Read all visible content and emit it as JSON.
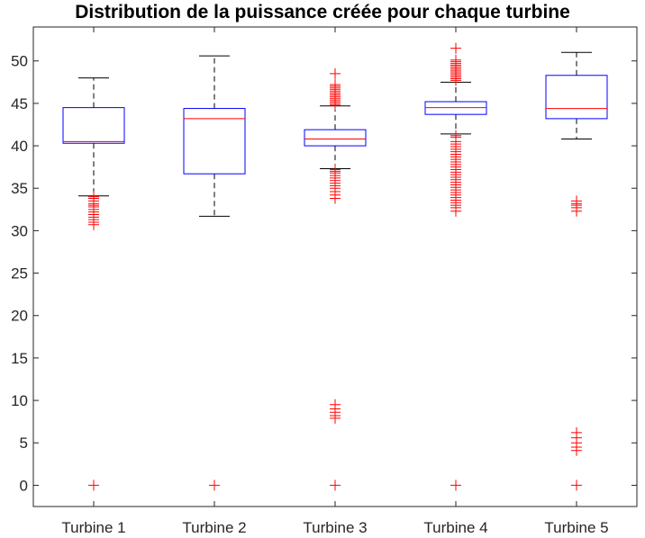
{
  "chart_data": {
    "type": "box",
    "title": "Distribution de la puissance créée pour chaque turbine",
    "xlabel": "",
    "ylabel": "",
    "ylim": [
      -2.5,
      54
    ],
    "yticks": [
      0,
      5,
      10,
      15,
      20,
      25,
      30,
      35,
      40,
      45,
      50
    ],
    "categories": [
      "Turbine 1",
      "Turbine 2",
      "Turbine 3",
      "Turbine 4",
      "Turbine 5"
    ],
    "boxes": [
      {
        "name": "Turbine 1",
        "whisker_low": 34.1,
        "q1": 40.3,
        "median": 40.5,
        "q3": 44.5,
        "whisker_high": 48.0,
        "outliers": [
          34.0,
          33.8,
          33.5,
          33.2,
          33.0,
          32.8,
          32.5,
          32.2,
          31.9,
          31.6,
          31.3,
          31.0,
          30.7,
          0
        ]
      },
      {
        "name": "Turbine 2",
        "whisker_low": 31.7,
        "q1": 36.7,
        "median": 43.2,
        "q3": 44.4,
        "whisker_high": 50.6,
        "outliers": [
          0
        ]
      },
      {
        "name": "Turbine 3",
        "whisker_low": 37.3,
        "q1": 40.0,
        "median": 40.8,
        "q3": 41.9,
        "whisker_high": 44.7,
        "outliers": [
          48.5,
          47.2,
          47.0,
          46.8,
          46.6,
          46.4,
          46.2,
          46.0,
          45.8,
          45.6,
          45.4,
          45.2,
          45.0,
          44.8,
          37.2,
          37.0,
          36.8,
          36.5,
          36.2,
          35.9,
          35.6,
          35.3,
          35.0,
          34.6,
          34.2,
          33.8,
          9.5,
          9.0,
          8.6,
          8.2,
          7.9,
          0
        ]
      },
      {
        "name": "Turbine 4",
        "whisker_low": 41.4,
        "q1": 43.7,
        "median": 44.5,
        "q3": 45.2,
        "whisker_high": 47.5,
        "outliers": [
          51.5,
          50.1,
          49.9,
          49.7,
          49.5,
          49.3,
          49.1,
          48.9,
          48.7,
          48.5,
          48.3,
          48.1,
          47.9,
          47.7,
          41.2,
          41.0,
          40.5,
          40.2,
          39.9,
          39.6,
          39.3,
          39.0,
          38.7,
          38.4,
          38.1,
          37.8,
          37.5,
          37.2,
          36.9,
          36.6,
          36.3,
          36.0,
          35.7,
          35.4,
          35.1,
          34.8,
          34.5,
          34.2,
          33.9,
          33.6,
          33.3,
          33.0,
          32.7,
          32.3,
          0
        ]
      },
      {
        "name": "Turbine 5",
        "whisker_low": 40.8,
        "q1": 43.2,
        "median": 44.4,
        "q3": 48.3,
        "whisker_high": 51.0,
        "outliers": [
          33.5,
          33.2,
          33.0,
          32.7,
          32.3,
          6.2,
          5.6,
          5.0,
          4.5,
          4.1,
          0
        ]
      }
    ],
    "colors": {
      "box": "#0000ff",
      "median": "#ff0000",
      "whisker": "#000000",
      "outlier": "#ff0000",
      "axis": "#262626"
    },
    "grid": false,
    "legend": "none"
  }
}
